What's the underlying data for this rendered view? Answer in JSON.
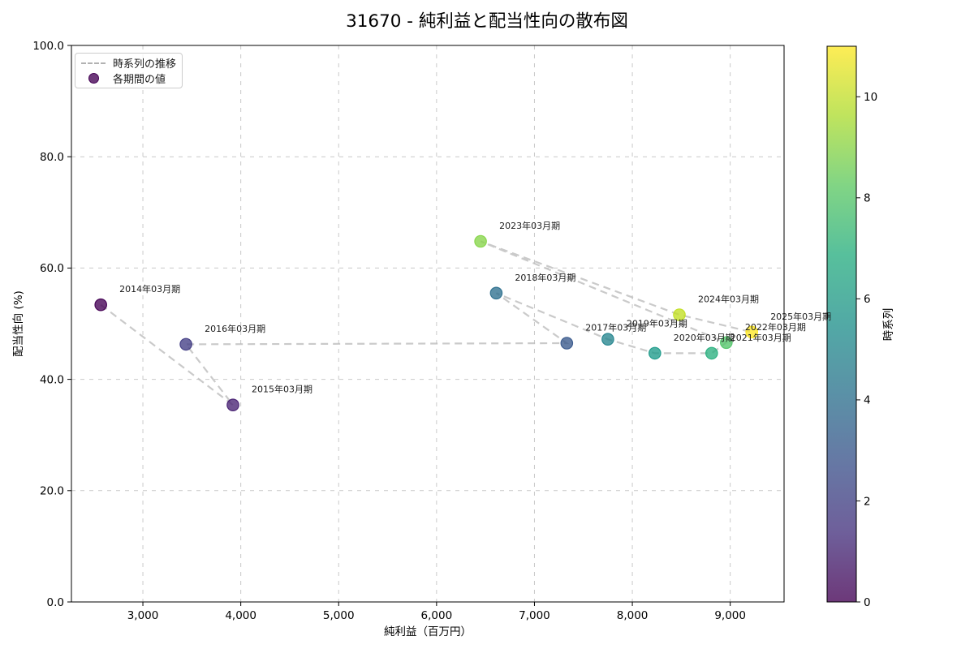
{
  "figure": {
    "title": "31670 - 純利益と配当性向の散布図"
  },
  "legend": {
    "items": [
      {
        "label": "時系列の推移",
        "type": "dashed-line"
      },
      {
        "label": "各期間の値",
        "type": "marker",
        "color": "#440154"
      }
    ]
  },
  "chart_data": {
    "type": "scatter",
    "title": "31670 - 純利益と配当性向の散布図",
    "xlabel": "純利益（百万円）",
    "ylabel": "配当性向 (%)",
    "xlim": [
      2270,
      9550
    ],
    "ylim": [
      0,
      100
    ],
    "xticks": [
      3000,
      4000,
      5000,
      6000,
      7000,
      8000,
      9000
    ],
    "xtick_labels": [
      "3,000",
      "4,000",
      "5,000",
      "6,000",
      "7,000",
      "8,000",
      "9,000"
    ],
    "yticks": [
      0,
      20,
      40,
      60,
      80,
      100
    ],
    "ytick_labels": [
      "0.0",
      "20.0",
      "40.0",
      "60.0",
      "80.0",
      "100.0"
    ],
    "grid": true,
    "line": {
      "label": "時系列の推移",
      "color": "#bdbdbd",
      "style": "dashed",
      "order": "chronological"
    },
    "points_label": "各期間の値",
    "points": [
      {
        "label": "2014年03月期",
        "x": 2570,
        "y": 53.4,
        "t": 0,
        "color": "#440154"
      },
      {
        "label": "2015年03月期",
        "x": 3920,
        "y": 35.4,
        "t": 1,
        "color": "#482173"
      },
      {
        "label": "2016年03月期",
        "x": 3440,
        "y": 46.3,
        "t": 2,
        "color": "#433e85"
      },
      {
        "label": "2017年03月期",
        "x": 7330,
        "y": 46.5,
        "t": 3,
        "color": "#38598c"
      },
      {
        "label": "2018年03月期",
        "x": 6610,
        "y": 55.5,
        "t": 4,
        "color": "#2d708e"
      },
      {
        "label": "2019年03月期",
        "x": 7750,
        "y": 47.2,
        "t": 5,
        "color": "#25858e"
      },
      {
        "label": "2020年03月期",
        "x": 8230,
        "y": 44.7,
        "t": 6,
        "color": "#1e9b8a"
      },
      {
        "label": "2021年03月期",
        "x": 8810,
        "y": 44.7,
        "t": 7,
        "color": "#2ab07f"
      },
      {
        "label": "2022年03月期",
        "x": 8960,
        "y": 46.6,
        "t": 8,
        "color": "#52c569"
      },
      {
        "label": "2023年03月期",
        "x": 6450,
        "y": 64.8,
        "t": 9,
        "color": "#86d549"
      },
      {
        "label": "2024年03月期",
        "x": 8480,
        "y": 51.6,
        "t": 10,
        "color": "#c2df23"
      },
      {
        "label": "2025年03月期",
        "x": 9220,
        "y": 48.5,
        "t": 11,
        "color": "#fde725"
      }
    ],
    "colorbar": {
      "label": "時系列",
      "min": 0,
      "max": 11,
      "ticks": [
        0,
        2,
        4,
        6,
        8,
        10
      ],
      "colormap": "viridis",
      "gradient": [
        "#440154",
        "#46327e",
        "#3b528b",
        "#2c728e",
        "#21918c",
        "#28ae80",
        "#5ec962",
        "#addc30",
        "#fde725"
      ]
    }
  }
}
